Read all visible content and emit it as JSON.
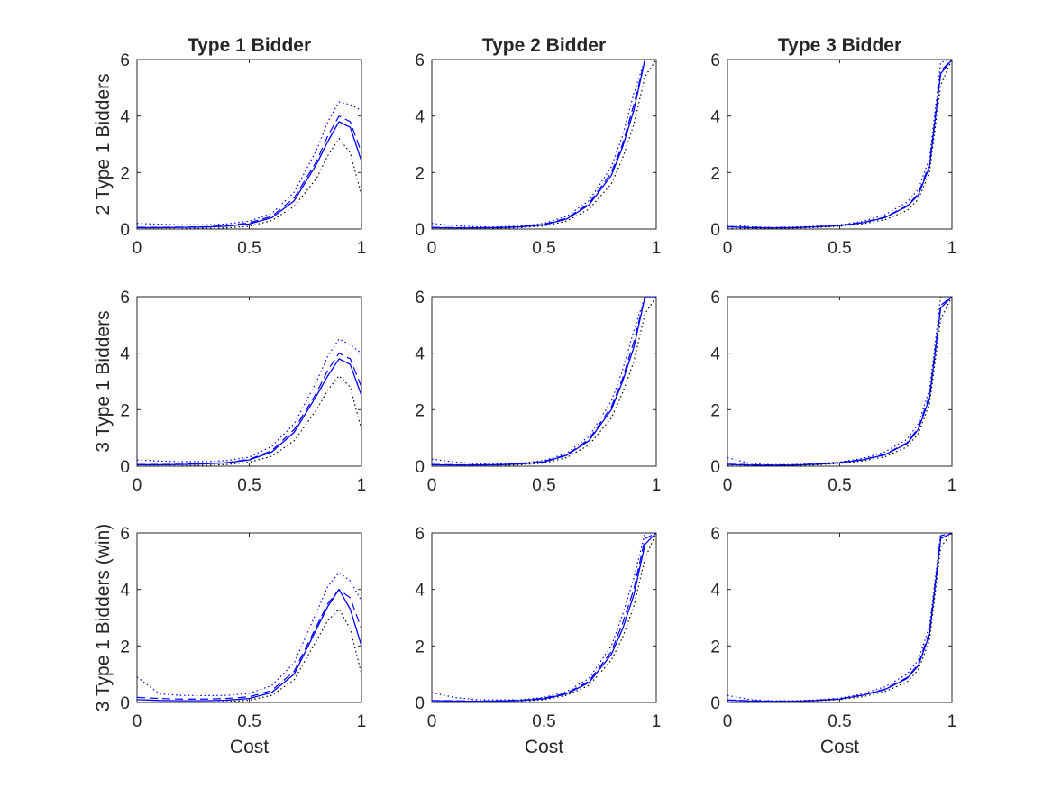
{
  "chart_data": {
    "type": "line",
    "layout": "3x3 grid of panels",
    "column_titles": [
      "Type 1 Bidder",
      "Type 2 Bidder",
      "Type 3 Bidder"
    ],
    "row_labels": [
      "2 Type 1 Bidders",
      "3 Type 1 Bidders",
      "3 Type 1 Bidders (win)"
    ],
    "xlabel": "Cost",
    "xlim": [
      0,
      1
    ],
    "ylim": [
      0,
      6
    ],
    "xticks": [
      0,
      0.5,
      1
    ],
    "xtick_labels": [
      "0",
      "0.5",
      "1"
    ],
    "yticks": [
      0,
      2,
      4,
      6
    ],
    "ytick_labels": [
      "0",
      "2",
      "4",
      "6"
    ],
    "grid": false,
    "line_color": "#0000ff",
    "band_color": "#000000",
    "x": [
      0,
      0.1,
      0.2,
      0.3,
      0.4,
      0.5,
      0.6,
      0.7,
      0.8,
      0.85,
      0.9,
      0.95,
      1.0
    ],
    "panels": [
      [
        {
          "series": [
            {
              "style": "solid",
              "color": "blue",
              "values": [
                0.05,
                0.05,
                0.06,
                0.07,
                0.1,
                0.18,
                0.4,
                1.0,
                2.3,
                3.1,
                3.8,
                3.6,
                2.4
              ]
            },
            {
              "style": "dashed",
              "color": "blue",
              "values": [
                0.06,
                0.06,
                0.07,
                0.08,
                0.12,
                0.22,
                0.45,
                1.1,
                2.4,
                3.3,
                4.0,
                3.8,
                2.7
              ]
            },
            {
              "style": "dotted",
              "color": "blue",
              "values": [
                0.2,
                0.17,
                0.15,
                0.15,
                0.18,
                0.28,
                0.55,
                1.3,
                2.8,
                3.8,
                4.5,
                4.4,
                4.2
              ]
            },
            {
              "style": "dotted",
              "color": "black",
              "values": [
                0.0,
                0.0,
                0.01,
                0.02,
                0.04,
                0.1,
                0.3,
                0.8,
                1.8,
                2.6,
                3.2,
                2.7,
                1.2
              ]
            }
          ]
        },
        {
          "series": [
            {
              "style": "solid",
              "color": "blue",
              "values": [
                0.05,
                0.04,
                0.04,
                0.05,
                0.08,
                0.15,
                0.35,
                0.85,
                1.9,
                2.9,
                4.2,
                6.0,
                6.0
              ]
            },
            {
              "style": "dashed",
              "color": "blue",
              "values": [
                0.06,
                0.05,
                0.05,
                0.06,
                0.09,
                0.17,
                0.38,
                0.9,
                2.0,
                3.0,
                4.4,
                6.0,
                6.0
              ]
            },
            {
              "style": "dotted",
              "color": "blue",
              "values": [
                0.2,
                0.12,
                0.08,
                0.08,
                0.11,
                0.2,
                0.45,
                1.0,
                2.2,
                3.3,
                4.8,
                6.0,
                6.0
              ]
            },
            {
              "style": "dotted",
              "color": "black",
              "values": [
                0.0,
                0.0,
                0.0,
                0.02,
                0.05,
                0.11,
                0.28,
                0.7,
                1.6,
                2.5,
                3.7,
                5.4,
                6.0
              ]
            }
          ]
        },
        {
          "series": [
            {
              "style": "solid",
              "color": "blue",
              "values": [
                0.08,
                0.05,
                0.04,
                0.05,
                0.08,
                0.12,
                0.22,
                0.4,
                0.8,
                1.2,
                2.2,
                5.5,
                6.0
              ]
            },
            {
              "style": "dashed",
              "color": "blue",
              "values": [
                0.09,
                0.06,
                0.05,
                0.06,
                0.09,
                0.13,
                0.23,
                0.42,
                0.82,
                1.25,
                2.3,
                5.6,
                6.0
              ]
            },
            {
              "style": "dotted",
              "color": "blue",
              "values": [
                0.15,
                0.08,
                0.06,
                0.07,
                0.1,
                0.15,
                0.27,
                0.5,
                0.95,
                1.4,
                2.5,
                5.9,
                6.0
              ]
            },
            {
              "style": "dotted",
              "color": "black",
              "values": [
                0.02,
                0.02,
                0.02,
                0.03,
                0.06,
                0.1,
                0.18,
                0.33,
                0.65,
                1.05,
                2.0,
                5.1,
                6.0
              ]
            }
          ]
        }
      ],
      [
        {
          "series": [
            {
              "style": "solid",
              "color": "blue",
              "values": [
                0.05,
                0.05,
                0.06,
                0.08,
                0.12,
                0.22,
                0.5,
                1.2,
                2.5,
                3.2,
                3.8,
                3.6,
                2.5
              ]
            },
            {
              "style": "dashed",
              "color": "blue",
              "values": [
                0.06,
                0.06,
                0.07,
                0.09,
                0.13,
                0.24,
                0.55,
                1.3,
                2.6,
                3.4,
                4.0,
                3.8,
                2.8
              ]
            },
            {
              "style": "dotted",
              "color": "blue",
              "values": [
                0.22,
                0.18,
                0.16,
                0.16,
                0.2,
                0.32,
                0.7,
                1.5,
                3.0,
                3.9,
                4.5,
                4.3,
                4.0
              ]
            },
            {
              "style": "dotted",
              "color": "black",
              "values": [
                0.0,
                0.0,
                0.01,
                0.03,
                0.06,
                0.14,
                0.35,
                0.9,
                2.0,
                2.7,
                3.2,
                2.8,
                1.3
              ]
            }
          ]
        },
        {
          "series": [
            {
              "style": "solid",
              "color": "blue",
              "values": [
                0.05,
                0.04,
                0.04,
                0.05,
                0.08,
                0.15,
                0.38,
                0.9,
                2.0,
                3.0,
                4.2,
                6.0,
                6.0
              ]
            },
            {
              "style": "dashed",
              "color": "blue",
              "values": [
                0.06,
                0.05,
                0.05,
                0.06,
                0.09,
                0.17,
                0.4,
                0.95,
                2.1,
                3.1,
                4.4,
                6.0,
                6.0
              ]
            },
            {
              "style": "dotted",
              "color": "blue",
              "values": [
                0.25,
                0.15,
                0.08,
                0.08,
                0.11,
                0.2,
                0.45,
                1.05,
                2.3,
                3.4,
                4.8,
                6.0,
                6.0
              ]
            },
            {
              "style": "dotted",
              "color": "black",
              "values": [
                0.0,
                0.0,
                0.0,
                0.02,
                0.05,
                0.11,
                0.3,
                0.75,
                1.7,
                2.6,
                3.7,
                5.4,
                6.0
              ]
            }
          ]
        },
        {
          "series": [
            {
              "style": "solid",
              "color": "blue",
              "values": [
                0.06,
                0.04,
                0.03,
                0.04,
                0.07,
                0.12,
                0.22,
                0.4,
                0.8,
                1.3,
                2.4,
                5.6,
                6.0
              ]
            },
            {
              "style": "dashed",
              "color": "blue",
              "values": [
                0.07,
                0.05,
                0.04,
                0.05,
                0.08,
                0.13,
                0.23,
                0.42,
                0.83,
                1.35,
                2.5,
                5.7,
                6.0
              ]
            },
            {
              "style": "dotted",
              "color": "blue",
              "values": [
                0.3,
                0.1,
                0.05,
                0.06,
                0.09,
                0.15,
                0.27,
                0.5,
                0.95,
                1.5,
                2.7,
                6.0,
                6.0
              ]
            },
            {
              "style": "dotted",
              "color": "black",
              "values": [
                0.01,
                0.01,
                0.01,
                0.02,
                0.05,
                0.1,
                0.18,
                0.33,
                0.68,
                1.15,
                2.2,
                5.2,
                6.0
              ]
            }
          ]
        }
      ],
      [
        {
          "series": [
            {
              "style": "solid",
              "color": "blue",
              "values": [
                0.1,
                0.07,
                0.06,
                0.06,
                0.08,
                0.14,
                0.35,
                1.0,
                2.6,
                3.4,
                4.0,
                3.3,
                2.0
              ]
            },
            {
              "style": "dashed",
              "color": "blue",
              "values": [
                0.18,
                0.14,
                0.12,
                0.12,
                0.14,
                0.2,
                0.42,
                1.1,
                2.7,
                3.5,
                4.0,
                3.7,
                2.6
              ]
            },
            {
              "style": "dotted",
              "color": "blue",
              "values": [
                0.9,
                0.3,
                0.25,
                0.24,
                0.25,
                0.32,
                0.6,
                1.4,
                3.2,
                4.1,
                4.6,
                4.3,
                3.6
              ]
            },
            {
              "style": "dotted",
              "color": "black",
              "values": [
                0.0,
                0.0,
                0.0,
                0.01,
                0.03,
                0.08,
                0.25,
                0.8,
                2.2,
                2.9,
                3.3,
                2.6,
                1.0
              ]
            }
          ]
        },
        {
          "series": [
            {
              "style": "solid",
              "color": "blue",
              "values": [
                0.06,
                0.05,
                0.04,
                0.05,
                0.07,
                0.13,
                0.3,
                0.7,
                1.7,
                2.6,
                3.8,
                5.6,
                6.0
              ]
            },
            {
              "style": "dashed",
              "color": "blue",
              "values": [
                0.07,
                0.06,
                0.05,
                0.06,
                0.08,
                0.15,
                0.33,
                0.75,
                1.8,
                2.8,
                4.0,
                5.8,
                6.0
              ]
            },
            {
              "style": "dotted",
              "color": "blue",
              "values": [
                0.35,
                0.18,
                0.1,
                0.09,
                0.1,
                0.18,
                0.38,
                0.85,
                2.0,
                3.1,
                4.4,
                6.0,
                6.0
              ]
            },
            {
              "style": "dotted",
              "color": "black",
              "values": [
                0.0,
                0.0,
                0.0,
                0.02,
                0.04,
                0.1,
                0.25,
                0.6,
                1.5,
                2.3,
                3.4,
                5.1,
                6.0
              ]
            }
          ]
        },
        {
          "series": [
            {
              "style": "solid",
              "color": "blue",
              "values": [
                0.08,
                0.05,
                0.04,
                0.04,
                0.07,
                0.12,
                0.25,
                0.45,
                0.85,
                1.3,
                2.4,
                5.8,
                6.0
              ]
            },
            {
              "style": "dashed",
              "color": "blue",
              "values": [
                0.09,
                0.06,
                0.05,
                0.05,
                0.08,
                0.13,
                0.26,
                0.47,
                0.88,
                1.35,
                2.5,
                5.9,
                6.0
              ]
            },
            {
              "style": "dotted",
              "color": "blue",
              "values": [
                0.25,
                0.1,
                0.06,
                0.06,
                0.09,
                0.15,
                0.3,
                0.55,
                1.0,
                1.5,
                2.7,
                6.0,
                6.0
              ]
            },
            {
              "style": "dotted",
              "color": "black",
              "values": [
                0.02,
                0.02,
                0.02,
                0.03,
                0.06,
                0.1,
                0.2,
                0.38,
                0.72,
                1.15,
                2.2,
                5.5,
                6.0
              ]
            }
          ]
        }
      ]
    ]
  }
}
